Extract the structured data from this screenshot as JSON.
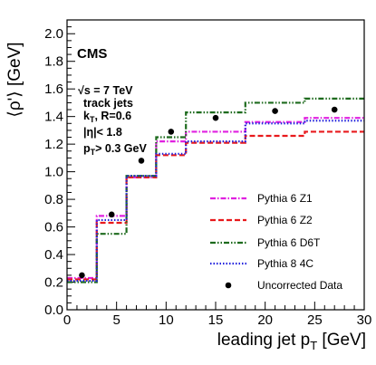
{
  "chart_data": {
    "type": "line",
    "xlabel": "leading jet p_T [GeV]",
    "ylabel": "⟨ρ'⟩ [GeV]",
    "xlim": [
      0,
      30
    ],
    "ylim": [
      0,
      2.1
    ],
    "x_ticks": [
      0,
      5,
      10,
      15,
      20,
      25,
      30
    ],
    "y_ticks": [
      0.0,
      0.2,
      0.4,
      0.6,
      0.8,
      1.0,
      1.2,
      1.4,
      1.6,
      1.8,
      2.0
    ],
    "grid": false,
    "legend_position": "bottom-right",
    "bin_edges": [
      0,
      3,
      6,
      9,
      12,
      18,
      24,
      30
    ],
    "annotations": [
      "CMS",
      "√s = 7 TeV",
      "track jets",
      "k_T, R=0.6",
      "|η|< 1.8",
      "p_T > 0.3 GeV"
    ],
    "series": [
      {
        "name": "Pythia 6 Z1",
        "color": "#e020e0",
        "dash": "dashdot",
        "values": [
          0.23,
          0.68,
          0.96,
          1.22,
          1.29,
          1.36,
          1.39
        ]
      },
      {
        "name": "Pythia 6 Z2",
        "color": "#e8191c",
        "dash": "dash",
        "values": [
          0.22,
          0.63,
          0.96,
          1.12,
          1.21,
          1.26,
          1.29
        ]
      },
      {
        "name": "Pythia 6 D6T",
        "color": "#1e6b1e",
        "dash": "dashdotdot",
        "values": [
          0.2,
          0.55,
          0.97,
          1.25,
          1.43,
          1.5,
          1.53
        ]
      },
      {
        "name": "Pythia 8 4C",
        "color": "#2222dd",
        "dash": "dot",
        "values": [
          0.21,
          0.65,
          0.97,
          1.13,
          1.22,
          1.35,
          1.37
        ]
      }
    ],
    "data_points": {
      "name": "Uncorrected Data",
      "x": [
        1.5,
        4.5,
        7.5,
        10.5,
        15,
        21,
        27
      ],
      "y": [
        0.25,
        0.69,
        1.08,
        1.29,
        1.39,
        1.44,
        1.45
      ]
    }
  }
}
